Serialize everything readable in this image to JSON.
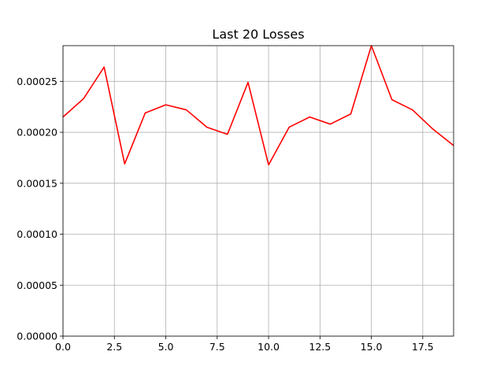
{
  "chart_data": {
    "type": "line",
    "title": "Last 20 Losses",
    "xlabel": "",
    "ylabel": "",
    "xlim": [
      0,
      19
    ],
    "ylim": [
      0,
      0.000285
    ],
    "grid": true,
    "x_ticks": [
      0.0,
      2.5,
      5.0,
      7.5,
      10.0,
      12.5,
      15.0,
      17.5
    ],
    "x_tick_labels": [
      "0.0",
      "2.5",
      "5.0",
      "7.5",
      "10.0",
      "12.5",
      "15.0",
      "17.5"
    ],
    "y_ticks": [
      0,
      5e-05,
      0.0001,
      0.00015,
      0.0002,
      0.00025
    ],
    "y_tick_labels": [
      "0.00000",
      "0.00005",
      "0.00010",
      "0.00015",
      "0.00020",
      "0.00025"
    ],
    "series": [
      {
        "color": "#ff0000",
        "x": [
          0,
          1,
          2,
          3,
          4,
          5,
          6,
          7,
          8,
          9,
          10,
          11,
          12,
          13,
          14,
          15,
          16,
          17,
          18,
          19
        ],
        "values": [
          0.000215,
          0.000233,
          0.000264,
          0.000169,
          0.000219,
          0.000227,
          0.000222,
          0.000205,
          0.000198,
          0.000249,
          0.000168,
          0.000205,
          0.000215,
          0.000208,
          0.000218,
          0.000285,
          0.000232,
          0.000222,
          0.000203,
          0.000187
        ]
      }
    ]
  }
}
